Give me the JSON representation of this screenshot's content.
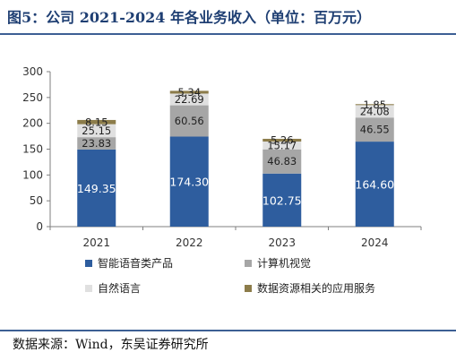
{
  "title": "图5：公司 2021-2024 年各业务收入（单位：百万元）",
  "source": "数据来源：Wind，东吴证券研究所",
  "colors": {
    "智能语音类产品": "#2e5d9e",
    "计算机视觉": "#a6a6a6",
    "自然语言": "#e0e0e0",
    "数据资源相关的应用服务": "#8c7c4a"
  },
  "chart_data": {
    "type": "bar",
    "stacked": true,
    "categories": [
      "2021",
      "2022",
      "2023",
      "2024"
    ],
    "series": [
      {
        "name": "智能语音类产品",
        "values": [
          149.35,
          174.3,
          102.75,
          164.6
        ]
      },
      {
        "name": "计算机视觉",
        "values": [
          23.83,
          60.56,
          46.83,
          46.55
        ]
      },
      {
        "name": "自然语言",
        "values": [
          25.15,
          22.69,
          15.17,
          24.08
        ]
      },
      {
        "name": "数据资源相关的应用服务",
        "values": [
          8.15,
          5.34,
          5.26,
          1.85
        ]
      }
    ],
    "ylim": [
      0,
      300
    ],
    "yticks": [
      0,
      50,
      100,
      150,
      200,
      250,
      300
    ],
    "grid": false,
    "legend": "bottom"
  }
}
